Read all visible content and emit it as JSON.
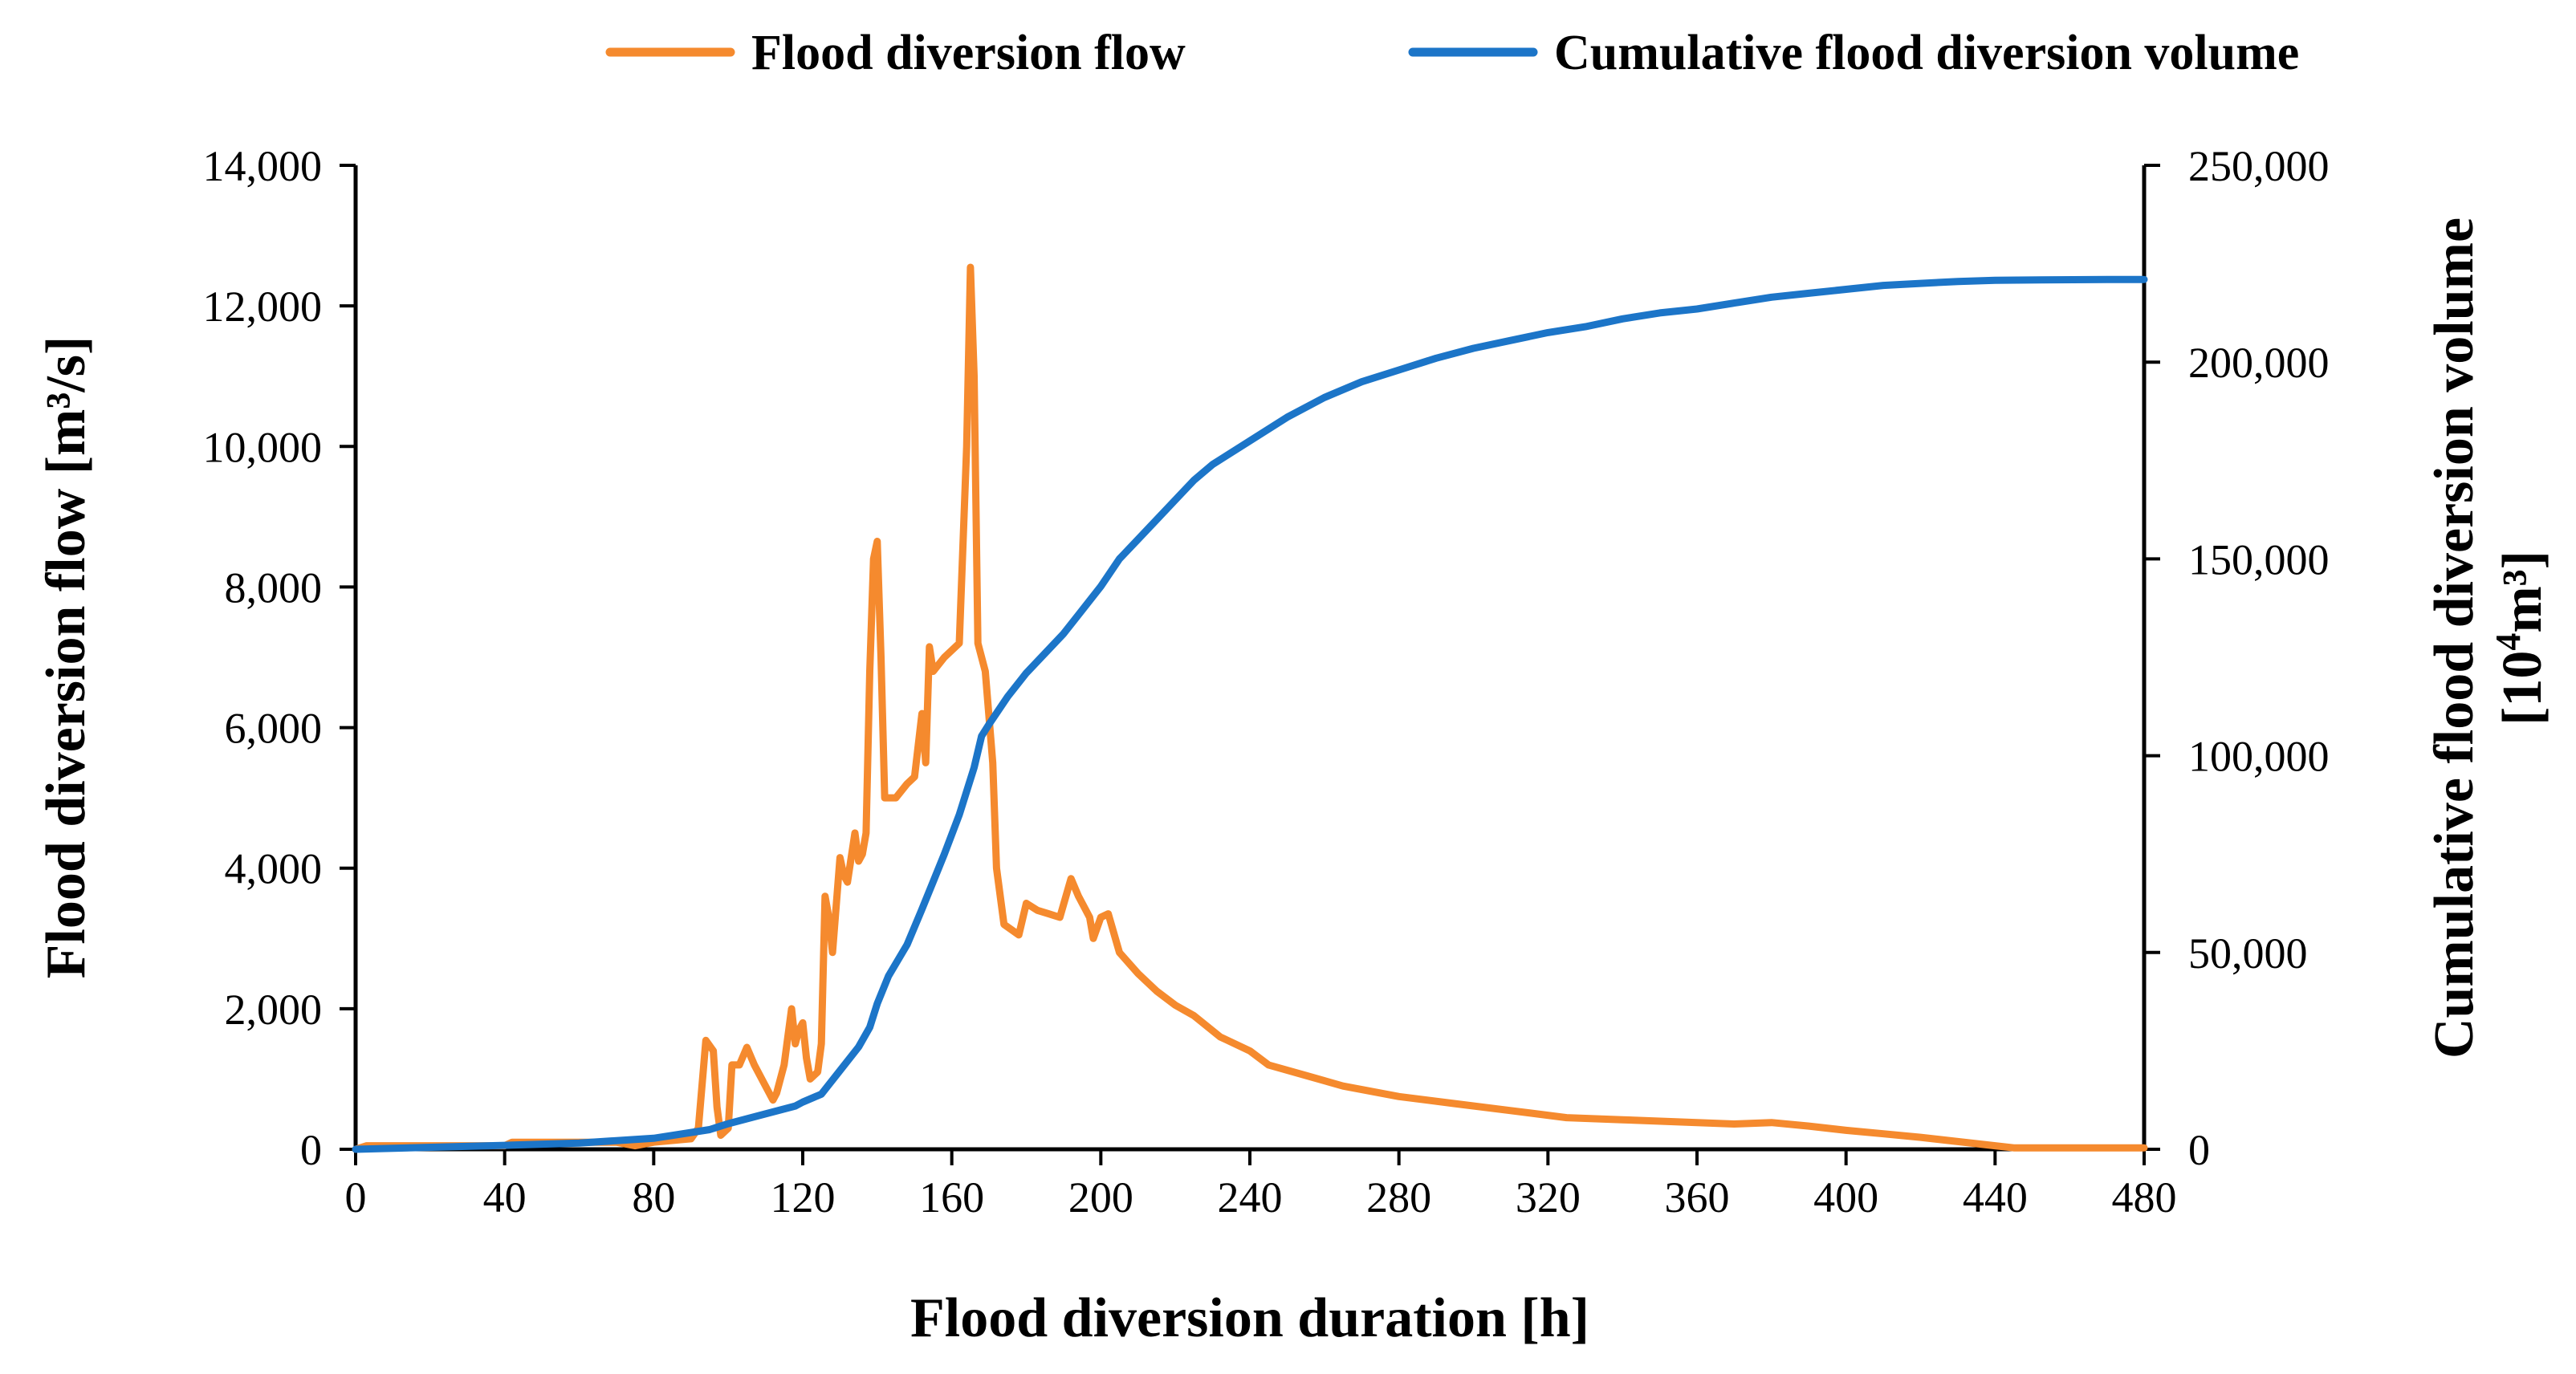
{
  "chart_data": {
    "type": "line",
    "title": "",
    "xlabel": "Flood diversion duration [h]",
    "ylabel": "Flood diversion flow [m³/s]",
    "y2label_line1": "Cumulative flood diversion volume",
    "y2label_line2_base": "[10",
    "y2label_line2_sup": "4",
    "y2label_line2_rest": "m³]",
    "xlim": [
      0,
      480
    ],
    "ylim": [
      0,
      14000
    ],
    "y2lim": [
      0,
      250000
    ],
    "x_ticks": [
      "0",
      "40",
      "80",
      "120",
      "160",
      "200",
      "240",
      "280",
      "320",
      "360",
      "400",
      "440",
      "480"
    ],
    "y_ticks": [
      "0",
      "2,000",
      "4,000",
      "6,000",
      "8,000",
      "10,000",
      "12,000",
      "14,000"
    ],
    "y2_ticks": [
      "0",
      "50,000",
      "100,000",
      "150,000",
      "200,000",
      "250,000"
    ],
    "legend_position": "top",
    "series": [
      {
        "name": "Flood diversion flow",
        "axis": "left",
        "color": "#F58A2E",
        "points": [
          [
            0,
            0
          ],
          [
            3,
            50
          ],
          [
            40,
            50
          ],
          [
            42,
            100
          ],
          [
            70,
            100
          ],
          [
            75,
            50
          ],
          [
            80,
            100
          ],
          [
            90,
            150
          ],
          [
            92,
            300
          ],
          [
            94,
            1550
          ],
          [
            96,
            1400
          ],
          [
            97,
            600
          ],
          [
            98,
            200
          ],
          [
            100,
            300
          ],
          [
            101,
            1200
          ],
          [
            103,
            1200
          ],
          [
            105,
            1450
          ],
          [
            107,
            1200
          ],
          [
            110,
            900
          ],
          [
            112,
            700
          ],
          [
            113,
            800
          ],
          [
            115,
            1200
          ],
          [
            117,
            2000
          ],
          [
            118,
            1500
          ],
          [
            119,
            1700
          ],
          [
            120,
            1800
          ],
          [
            121,
            1300
          ],
          [
            122,
            1000
          ],
          [
            124,
            1100
          ],
          [
            125,
            1500
          ],
          [
            126,
            3600
          ],
          [
            127,
            3300
          ],
          [
            128,
            2800
          ],
          [
            130,
            4150
          ],
          [
            131,
            3900
          ],
          [
            132,
            3800
          ],
          [
            134,
            4500
          ],
          [
            135,
            4100
          ],
          [
            136,
            4200
          ],
          [
            137,
            4500
          ],
          [
            138,
            6800
          ],
          [
            139,
            8400
          ],
          [
            140,
            8650
          ],
          [
            141,
            7000
          ],
          [
            142,
            5000
          ],
          [
            145,
            5000
          ],
          [
            148,
            5200
          ],
          [
            150,
            5300
          ],
          [
            152,
            6200
          ],
          [
            153,
            5500
          ],
          [
            154,
            7150
          ],
          [
            155,
            6800
          ],
          [
            158,
            7000
          ],
          [
            162,
            7200
          ],
          [
            164,
            10000
          ],
          [
            165,
            12550
          ],
          [
            166,
            11000
          ],
          [
            167,
            7200
          ],
          [
            169,
            6800
          ],
          [
            171,
            5500
          ],
          [
            172,
            4000
          ],
          [
            174,
            3200
          ],
          [
            178,
            3050
          ],
          [
            180,
            3500
          ],
          [
            183,
            3400
          ],
          [
            186,
            3350
          ],
          [
            189,
            3300
          ],
          [
            192,
            3850
          ],
          [
            194,
            3600
          ],
          [
            197,
            3300
          ],
          [
            198,
            3000
          ],
          [
            200,
            3300
          ],
          [
            202,
            3350
          ],
          [
            205,
            2800
          ],
          [
            210,
            2500
          ],
          [
            215,
            2250
          ],
          [
            220,
            2050
          ],
          [
            225,
            1900
          ],
          [
            232,
            1600
          ],
          [
            240,
            1400
          ],
          [
            245,
            1200
          ],
          [
            255,
            1050
          ],
          [
            265,
            900
          ],
          [
            270,
            850
          ],
          [
            280,
            750
          ],
          [
            295,
            650
          ],
          [
            310,
            550
          ],
          [
            325,
            450
          ],
          [
            340,
            420
          ],
          [
            360,
            380
          ],
          [
            370,
            360
          ],
          [
            380,
            380
          ],
          [
            390,
            330
          ],
          [
            400,
            270
          ],
          [
            410,
            220
          ],
          [
            420,
            170
          ],
          [
            430,
            110
          ],
          [
            440,
            50
          ],
          [
            445,
            20
          ],
          [
            480,
            20
          ]
        ]
      },
      {
        "name": "Cumulative flood diversion volume",
        "axis": "right",
        "color": "#1C75C8",
        "points": [
          [
            0,
            0
          ],
          [
            40,
            1000
          ],
          [
            60,
            1600
          ],
          [
            80,
            2800
          ],
          [
            95,
            5000
          ],
          [
            100,
            6500
          ],
          [
            110,
            9000
          ],
          [
            118,
            11000
          ],
          [
            120,
            12000
          ],
          [
            125,
            14000
          ],
          [
            130,
            20000
          ],
          [
            135,
            26000
          ],
          [
            138,
            31000
          ],
          [
            140,
            37000
          ],
          [
            143,
            44000
          ],
          [
            148,
            52000
          ],
          [
            152,
            61000
          ],
          [
            155,
            68000
          ],
          [
            158,
            75000
          ],
          [
            162,
            85000
          ],
          [
            166,
            97000
          ],
          [
            168,
            105000
          ],
          [
            170,
            108000
          ],
          [
            175,
            115000
          ],
          [
            180,
            121000
          ],
          [
            190,
            131000
          ],
          [
            195,
            137000
          ],
          [
            200,
            143000
          ],
          [
            205,
            150000
          ],
          [
            210,
            155000
          ],
          [
            215,
            160000
          ],
          [
            220,
            165000
          ],
          [
            225,
            170000
          ],
          [
            230,
            174000
          ],
          [
            240,
            180000
          ],
          [
            250,
            186000
          ],
          [
            260,
            191000
          ],
          [
            270,
            195000
          ],
          [
            280,
            198000
          ],
          [
            290,
            201000
          ],
          [
            300,
            203500
          ],
          [
            310,
            205500
          ],
          [
            320,
            207500
          ],
          [
            330,
            209000
          ],
          [
            340,
            211000
          ],
          [
            350,
            212500
          ],
          [
            360,
            213500
          ],
          [
            370,
            215000
          ],
          [
            380,
            216500
          ],
          [
            390,
            217500
          ],
          [
            400,
            218500
          ],
          [
            410,
            219500
          ],
          [
            420,
            220000
          ],
          [
            430,
            220500
          ],
          [
            440,
            220800
          ],
          [
            470,
            221000
          ],
          [
            480,
            221000
          ]
        ]
      }
    ]
  }
}
